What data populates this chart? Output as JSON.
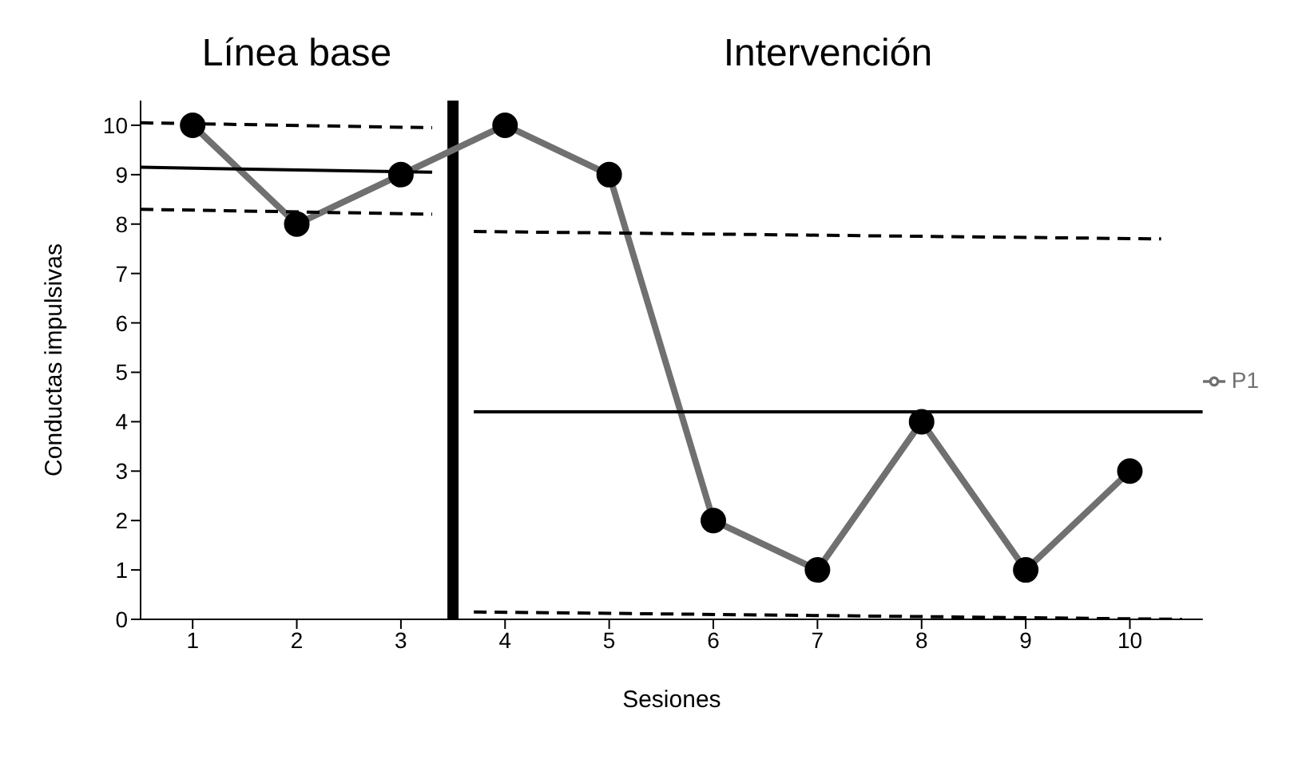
{
  "chart_data": {
    "type": "line",
    "xlabel": "Sesiones",
    "ylabel": "Conductas impulsivas",
    "annotations": [
      "Línea base",
      "Intervención"
    ],
    "x": [
      1,
      2,
      3,
      4,
      5,
      6,
      7,
      8,
      9,
      10
    ],
    "series": [
      {
        "name": "P1",
        "color": "#707070",
        "values": [
          10,
          8,
          9,
          10,
          9,
          2,
          1,
          4,
          1,
          3
        ],
        "marker": "circle",
        "line_style": "solid"
      },
      {
        "color": "#000000",
        "x": [
          0.5,
          3.3
        ],
        "values": [
          9.15,
          9.05
        ],
        "marker": "none",
        "line_style": "solid"
      },
      {
        "color": "#000000",
        "x": [
          0.5,
          3.3
        ],
        "values": [
          10.05,
          9.95
        ],
        "marker": "none",
        "line_style": "dashed"
      },
      {
        "color": "#000000",
        "x": [
          0.5,
          3.3
        ],
        "values": [
          8.3,
          8.2
        ],
        "marker": "none",
        "line_style": "dashed"
      },
      {
        "color": "#000000",
        "x": [
          3.7,
          10.7
        ],
        "values": [
          4.2,
          4.2
        ],
        "marker": "none",
        "line_style": "solid"
      },
      {
        "color": "#000000",
        "x": [
          3.7,
          10.3
        ],
        "values": [
          7.85,
          7.7
        ],
        "marker": "none",
        "line_style": "dashed"
      },
      {
        "color": "#000000",
        "x": [
          3.7,
          10.5
        ],
        "values": [
          0.15,
          0.0
        ],
        "marker": "none",
        "line_style": "dashed"
      }
    ],
    "ref_lines": [
      {
        "axis": "x",
        "value": 3.5,
        "color": "#000000"
      }
    ],
    "xlim": [
      0.5,
      10.7
    ],
    "xticks": [
      1,
      2,
      3,
      4,
      5,
      6,
      7,
      8,
      9,
      10
    ],
    "ylim": [
      0,
      10.5
    ],
    "yticks": [
      0,
      1,
      2,
      3,
      4,
      5,
      6,
      7,
      8,
      9,
      10
    ],
    "grid": false,
    "legend": "right"
  }
}
